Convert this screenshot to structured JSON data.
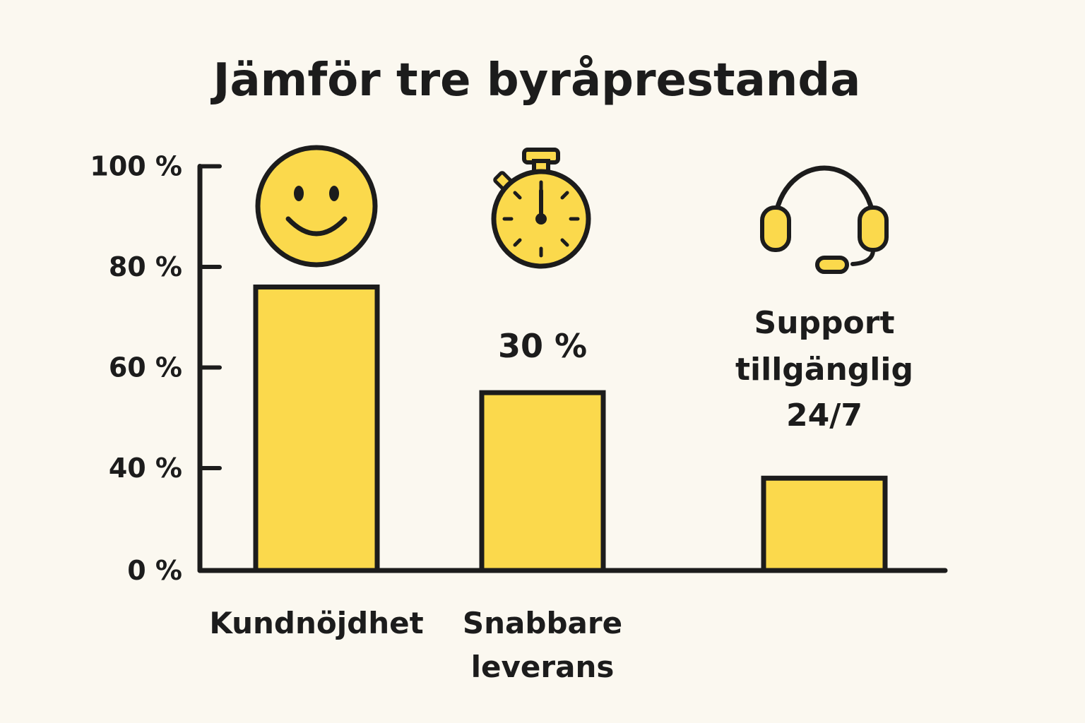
{
  "colors": {
    "bar": "#fbd94c",
    "stroke": "#1c1c1c",
    "background": "#fbf8f0"
  },
  "chart_data": {
    "type": "bar",
    "title": "Jämför tre byråprestanda",
    "categories": [
      "Kundnöjdhet",
      "Snabbare leverans",
      ""
    ],
    "category_lines": [
      [
        "Kundnöjdhet"
      ],
      [
        "Snabbare",
        "leverans"
      ],
      []
    ],
    "values": [
      76,
      55,
      38
    ],
    "y_ticks": [
      {
        "value": 0,
        "label": "0 %"
      },
      {
        "value": 40,
        "label": "40 %"
      },
      {
        "value": 60,
        "label": "60 %"
      },
      {
        "value": 80,
        "label": "80 %"
      },
      {
        "value": 100,
        "label": "100 %"
      }
    ],
    "ylim": [
      0,
      100
    ],
    "xlabel": "",
    "ylabel": "",
    "annotations": [
      {
        "text": "30 %",
        "for_bar": 1
      },
      {
        "lines": [
          "Support",
          "tillgänglig",
          "24/7"
        ],
        "for_bar": 2
      }
    ],
    "icons": [
      "smiley-icon",
      "stopwatch-icon",
      "headset-icon"
    ],
    "grid": false,
    "legend": "none"
  }
}
